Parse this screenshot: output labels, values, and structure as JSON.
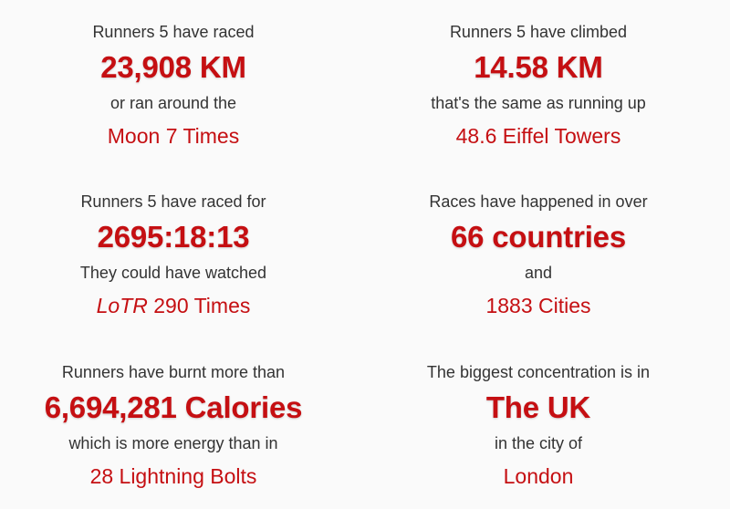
{
  "colors": {
    "accent": "#c50f12",
    "text": "#333333",
    "background": "#fafafa"
  },
  "stats": {
    "distance": {
      "lead": "Runners 5 have raced",
      "value": "23,908 KM",
      "sub": "or ran around the",
      "comparison": "Moon 7 Times"
    },
    "climb": {
      "lead": "Runners 5 have climbed",
      "value": "14.58 KM",
      "sub": "that's the same as running up",
      "comparison": "48.6 Eiffel Towers"
    },
    "time": {
      "lead": "Runners 5 have raced for",
      "value": "2695:18:13",
      "sub": "They could have watched",
      "comparison_title": "LoTR",
      "comparison_rest": " 290 Times"
    },
    "countries": {
      "lead": "Races have happened in over",
      "value": "66 countries",
      "sub": "and",
      "comparison": "1883 Cities"
    },
    "calories": {
      "lead": "Runners have burnt more than",
      "value": "6,694,281 Calories",
      "sub": "which is more energy than in",
      "comparison": "28 Lightning Bolts"
    },
    "concentration": {
      "lead": "The biggest concentration is in",
      "value": "The UK",
      "sub": "in the city of",
      "comparison": "London"
    }
  }
}
